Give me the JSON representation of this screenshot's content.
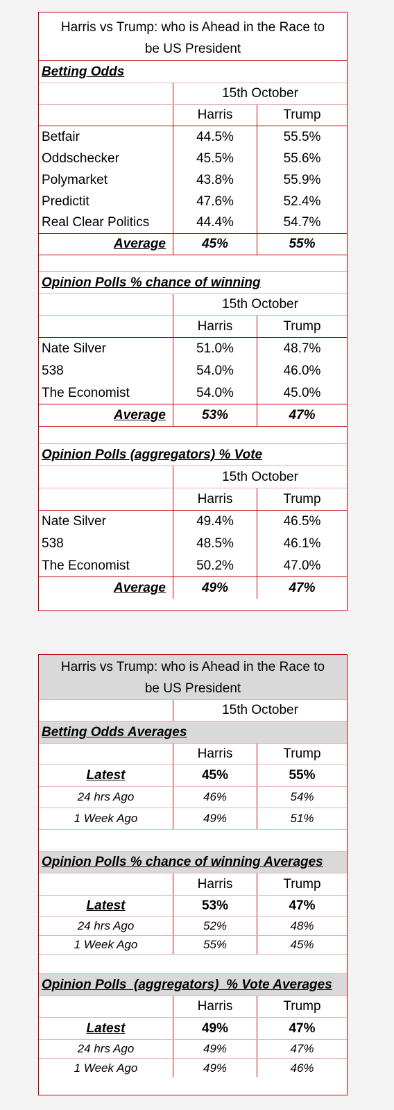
{
  "table1": {
    "title": "Harris vs Trump: who is Ahead in the Race to be US President",
    "date": "15th October",
    "col_harris": "Harris",
    "col_trump": "Trump",
    "average_label": "Average",
    "sections": [
      {
        "heading": "Betting Odds",
        "rows": [
          {
            "name": "Betfair",
            "harris": "44.5%",
            "trump": "55.5%"
          },
          {
            "name": "Oddschecker",
            "harris": "45.5%",
            "trump": "55.6%"
          },
          {
            "name": "Polymarket",
            "harris": "43.8%",
            "trump": "55.9%"
          },
          {
            "name": "Predictit",
            "harris": "47.6%",
            "trump": "52.4%"
          },
          {
            "name": "Real Clear Politics",
            "harris": "44.4%",
            "trump": "54.7%"
          }
        ],
        "average": {
          "harris": "45%",
          "trump": "55%"
        }
      },
      {
        "heading": "Opinion Polls % chance of winning",
        "rows": [
          {
            "name": "Nate Silver",
            "harris": "51.0%",
            "trump": "48.7%"
          },
          {
            "name": "538",
            "harris": "54.0%",
            "trump": "46.0%"
          },
          {
            "name": "The Economist",
            "harris": "54.0%",
            "trump": "45.0%"
          }
        ],
        "average": {
          "harris": "53%",
          "trump": "47%"
        }
      },
      {
        "heading": "Opinion Polls (aggregators) % Vote",
        "rows": [
          {
            "name": "Nate Silver",
            "harris": "49.4%",
            "trump": "46.5%"
          },
          {
            "name": "538",
            "harris": "48.5%",
            "trump": "46.1%"
          },
          {
            "name": "The Economist",
            "harris": "50.2%",
            "trump": "47.0%"
          }
        ],
        "average": {
          "harris": "49%",
          "trump": "47%"
        }
      }
    ]
  },
  "table2": {
    "title": "Harris vs Trump: who is Ahead in the Race to be US President",
    "date": "15th October",
    "col_harris": "Harris",
    "col_trump": "Trump",
    "sections": [
      {
        "heading": "Betting Odds Averages",
        "rows": [
          {
            "label": "Latest",
            "harris": "45%",
            "trump": "55%"
          },
          {
            "label": "24 hrs Ago",
            "harris": "46%",
            "trump": "54%"
          },
          {
            "label": "1 Week Ago",
            "harris": "49%",
            "trump": "51%"
          }
        ]
      },
      {
        "heading": "Opinion Polls % chance of winning Averages",
        "rows": [
          {
            "label": "Latest",
            "harris": "53%",
            "trump": "47%"
          },
          {
            "label": "24 hrs Ago",
            "harris": "52%",
            "trump": "48%"
          },
          {
            "label": "1 Week Ago",
            "harris": "55%",
            "trump": "45%"
          }
        ]
      },
      {
        "heading": "Opinion Polls  (aggregators)  % Vote Averages",
        "rows": [
          {
            "label": "Latest",
            "harris": "49%",
            "trump": "47%"
          },
          {
            "label": "24 hrs Ago",
            "harris": "49%",
            "trump": "47%"
          },
          {
            "label": "1 Week Ago",
            "harris": "49%",
            "trump": "46%"
          }
        ]
      }
    ]
  }
}
